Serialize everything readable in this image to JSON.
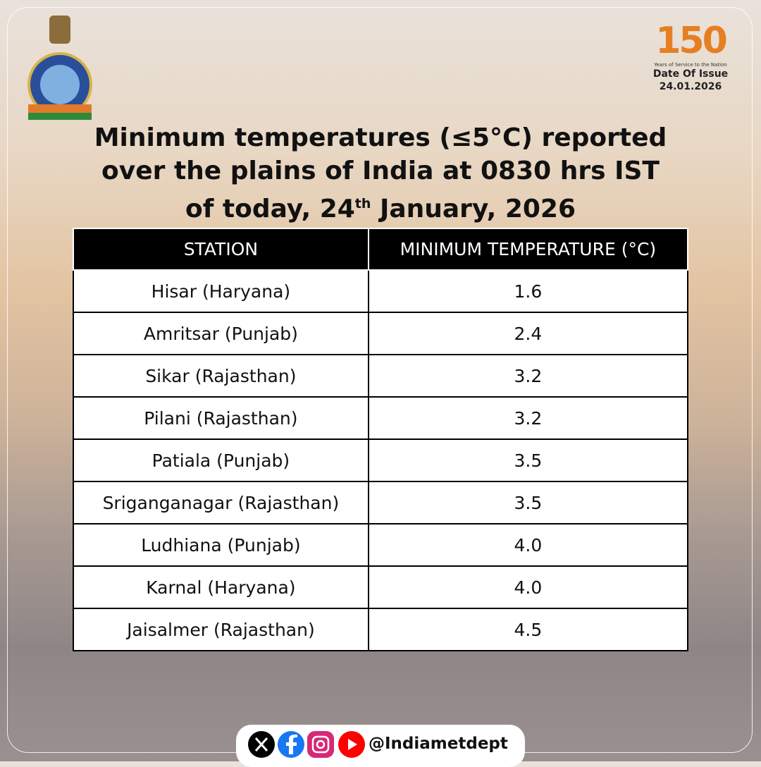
{
  "header": {
    "title_line1": "Minimum temperatures (≤5°C) reported",
    "title_line2": "over the plains of India at 0830 hrs IST",
    "title_line3_start": "of today, 24",
    "title_line3_sup": "th",
    "title_line3_end": " January, 2026"
  },
  "badge": {
    "number": "150",
    "tagline": "Years of Service to the Nation",
    "issue_label": "Date Of Issue",
    "issue_date": "24.01.2026"
  },
  "table": {
    "headers": [
      "STATION",
      "MINIMUM TEMPERATURE (°C)"
    ],
    "rows": [
      [
        "Hisar (Haryana)",
        "1.6"
      ],
      [
        "Amritsar (Punjab)",
        "2.4"
      ],
      [
        "Sikar (Rajasthan)",
        "3.2"
      ],
      [
        "Pilani (Rajasthan)",
        "3.2"
      ],
      [
        "Patiala (Punjab)",
        "3.5"
      ],
      [
        "Sriganganagar (Rajasthan)",
        "3.5"
      ],
      [
        "Ludhiana (Punjab)",
        "4.0"
      ],
      [
        "Karnal (Haryana)",
        "4.0"
      ],
      [
        "Jaisalmer (Rajasthan)",
        "4.5"
      ]
    ]
  },
  "footer": {
    "handle": "@Indiametdept"
  }
}
